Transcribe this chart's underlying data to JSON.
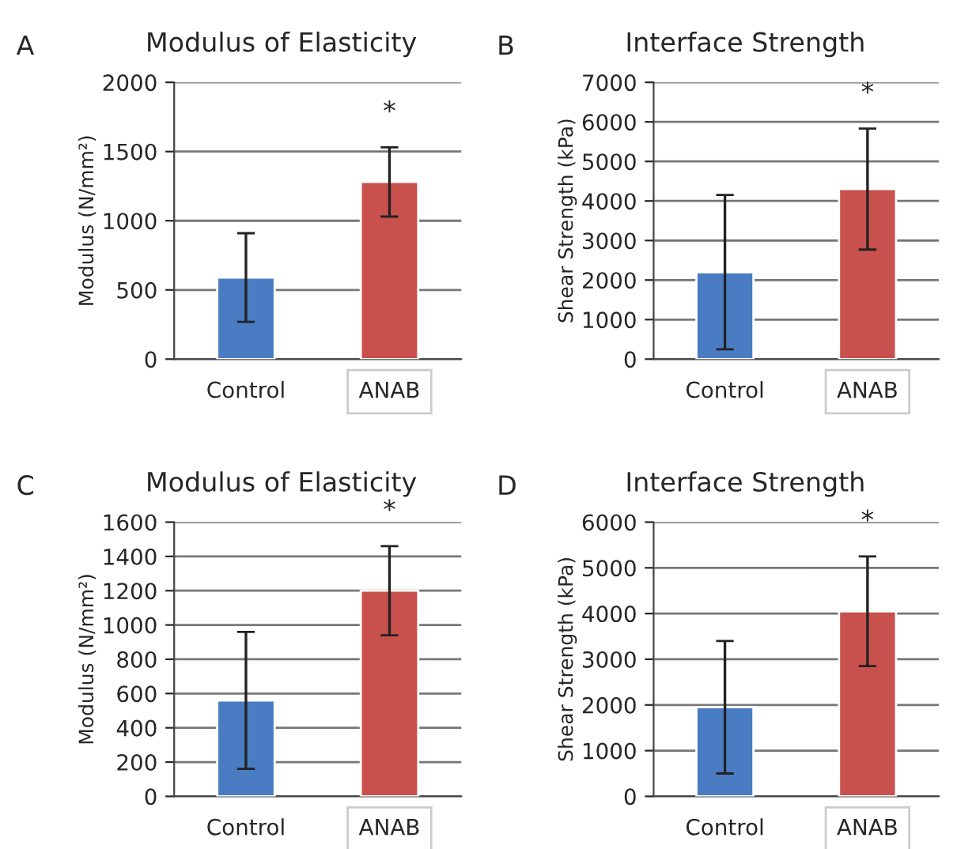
{
  "chart_data": [
    {
      "type": "bar",
      "title": "Modulus of Elasticity",
      "ylabel": "Modulus (N/mm²)",
      "categories": [
        "Control",
        "ANAB"
      ],
      "values": [
        590,
        1280
      ],
      "colors": [
        "#4a7cc4",
        "#c8504d"
      ],
      "errors": [
        320,
        250
      ],
      "ylim": [
        0,
        2000
      ],
      "yticks": [
        0,
        500,
        1000,
        1500,
        2000
      ],
      "grid": "y",
      "annotations": [
        "A",
        "*"
      ]
    },
    {
      "type": "bar",
      "title": "Interface Strength",
      "ylabel": "Shear Strength (kPa)",
      "categories": [
        "Control",
        "ANAB"
      ],
      "values": [
        2200,
        4300
      ],
      "colors": [
        "#4a7cc4",
        "#c8504d"
      ],
      "errors": [
        1950,
        1530
      ],
      "ylim": [
        0,
        7000
      ],
      "yticks": [
        0,
        1000,
        2000,
        3000,
        4000,
        5000,
        6000,
        7000
      ],
      "grid": "y",
      "annotations": [
        "B",
        "*"
      ]
    },
    {
      "type": "bar",
      "title": "Modulus of Elasticity",
      "ylabel": "Modulus (N/mm²)",
      "categories": [
        "Control",
        "ANAB"
      ],
      "values": [
        560,
        1200
      ],
      "colors": [
        "#4a7cc4",
        "#c8504d"
      ],
      "errors": [
        400,
        260
      ],
      "ylim": [
        0,
        1600
      ],
      "yticks": [
        0,
        200,
        400,
        600,
        800,
        1000,
        1200,
        1400,
        1600
      ],
      "grid": "y",
      "annotations": [
        "C",
        "*"
      ]
    },
    {
      "type": "bar",
      "title": "Interface Strength",
      "ylabel": "Shear Strength (kPa)",
      "categories": [
        "Control",
        "ANAB"
      ],
      "values": [
        1950,
        4050
      ],
      "colors": [
        "#4a7cc4",
        "#c8504d"
      ],
      "errors": [
        1450,
        1200
      ],
      "ylim": [
        0,
        6000
      ],
      "yticks": [
        0,
        1000,
        2000,
        3000,
        4000,
        5000,
        6000
      ],
      "grid": "y",
      "annotations": [
        "D",
        "*"
      ]
    }
  ]
}
